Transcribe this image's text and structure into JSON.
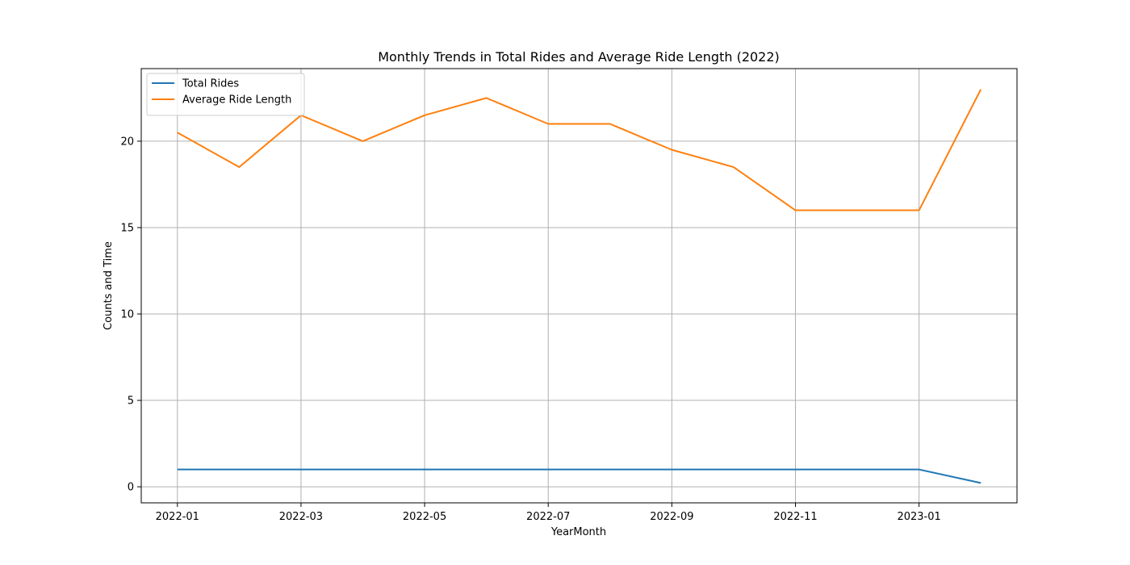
{
  "chart_data": {
    "type": "line",
    "title": "Monthly Trends in Total Rides and Average Ride Length (2022)",
    "xlabel": "YearMonth",
    "ylabel": "Counts and Time",
    "x": [
      "2022-01",
      "2022-02",
      "2022-03",
      "2022-04",
      "2022-05",
      "2022-06",
      "2022-07",
      "2022-08",
      "2022-09",
      "2022-10",
      "2022-11",
      "2022-12",
      "2023-01",
      "2023-02"
    ],
    "xticks": [
      "2022-01",
      "2022-03",
      "2022-05",
      "2022-07",
      "2022-09",
      "2022-11",
      "2023-01"
    ],
    "yticks": [
      0,
      5,
      10,
      15,
      20
    ],
    "ylim": [
      -0.93,
      24.2
    ],
    "grid": true,
    "legend_position": "upper-left",
    "series": [
      {
        "name": "Total Rides",
        "color": "#1f77b4",
        "values": [
          1,
          1,
          1,
          1,
          1,
          1,
          1,
          1,
          1,
          1,
          1,
          1,
          1,
          0.22
        ]
      },
      {
        "name": "Average Ride Length",
        "color": "#ff7f0e",
        "values": [
          20.5,
          18.5,
          21.5,
          20.0,
          21.5,
          22.5,
          21.0,
          21.0,
          19.5,
          18.5,
          16.0,
          16.0,
          16.0,
          23.0
        ]
      }
    ]
  }
}
